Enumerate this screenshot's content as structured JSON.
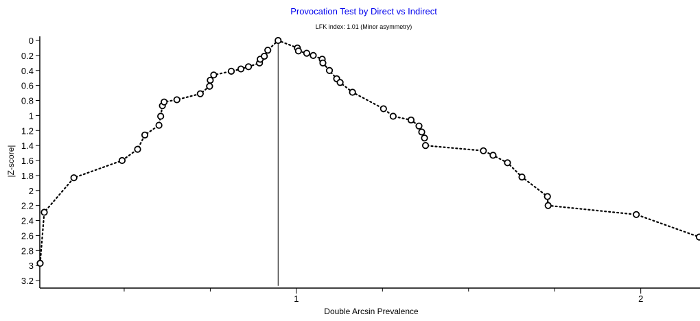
{
  "chart_data": {
    "type": "scatter",
    "title": "Provocation Test by Direct vs Indirect",
    "subtitle": "LFK index: 1.01 (Minor asymmetry)",
    "xlabel": "Double Arcsin Prevalence",
    "ylabel": "|Z-score|",
    "xlim": [
      0.255,
      2.17
    ],
    "ylim": [
      0,
      3.3
    ],
    "y_inverted": true,
    "x_ticks": [
      1,
      2
    ],
    "x_tick_labels": [
      "1",
      "2"
    ],
    "x_minor_ticks": [
      0.5,
      0.75,
      1.25,
      1.5,
      1.75
    ],
    "y_ticks": [
      0,
      0.2,
      0.4,
      0.6,
      0.8,
      1,
      1.2,
      1.4,
      1.6,
      1.8,
      2,
      2.2,
      2.4,
      2.6,
      2.8,
      3,
      3.2
    ],
    "y_tick_labels": [
      "0",
      "0.2",
      "0.4",
      "0.6",
      "0.8",
      "1",
      "1.2",
      "1.4",
      "1.6",
      "1.8",
      "2",
      "2.2",
      "2.4",
      "2.6",
      "2.8",
      "3",
      "3.2"
    ],
    "reference_line": {
      "x": 0.947,
      "y_from": 0,
      "y_to": 3.27
    },
    "grid": false,
    "legend": "none",
    "connect_points": true,
    "point_color": "#000000",
    "title_color": "#0000ee",
    "series": [
      {
        "points": [
          [
            0.256,
            2.97
          ],
          [
            0.268,
            2.29
          ],
          [
            0.354,
            1.83
          ],
          [
            0.494,
            1.6
          ],
          [
            0.539,
            1.45
          ],
          [
            0.56,
            1.26
          ],
          [
            0.601,
            1.13
          ],
          [
            0.606,
            1.01
          ],
          [
            0.611,
            0.87
          ],
          [
            0.616,
            0.82
          ],
          [
            0.653,
            0.79
          ],
          [
            0.721,
            0.71
          ],
          [
            0.748,
            0.61
          ],
          [
            0.75,
            0.53
          ],
          [
            0.76,
            0.46
          ],
          [
            0.811,
            0.41
          ],
          [
            0.839,
            0.38
          ],
          [
            0.861,
            0.35
          ],
          [
            0.893,
            0.3
          ],
          [
            0.895,
            0.25
          ],
          [
            0.907,
            0.21
          ],
          [
            0.917,
            0.13
          ],
          [
            0.947,
            0.0
          ],
          [
            1.003,
            0.1
          ],
          [
            1.006,
            0.14
          ],
          [
            1.03,
            0.17
          ],
          [
            1.049,
            0.2
          ],
          [
            1.075,
            0.25
          ],
          [
            1.077,
            0.3
          ],
          [
            1.096,
            0.4
          ],
          [
            1.117,
            0.51
          ],
          [
            1.127,
            0.56
          ],
          [
            1.163,
            0.69
          ],
          [
            1.253,
            0.91
          ],
          [
            1.281,
            1.01
          ],
          [
            1.333,
            1.06
          ],
          [
            1.356,
            1.14
          ],
          [
            1.364,
            1.22
          ],
          [
            1.372,
            1.3
          ],
          [
            1.375,
            1.4
          ],
          [
            1.543,
            1.47
          ],
          [
            1.571,
            1.53
          ],
          [
            1.613,
            1.63
          ],
          [
            1.655,
            1.82
          ],
          [
            1.729,
            2.08
          ],
          [
            1.731,
            2.2
          ],
          [
            1.987,
            2.32
          ],
          [
            2.17,
            2.62
          ]
        ]
      }
    ]
  }
}
